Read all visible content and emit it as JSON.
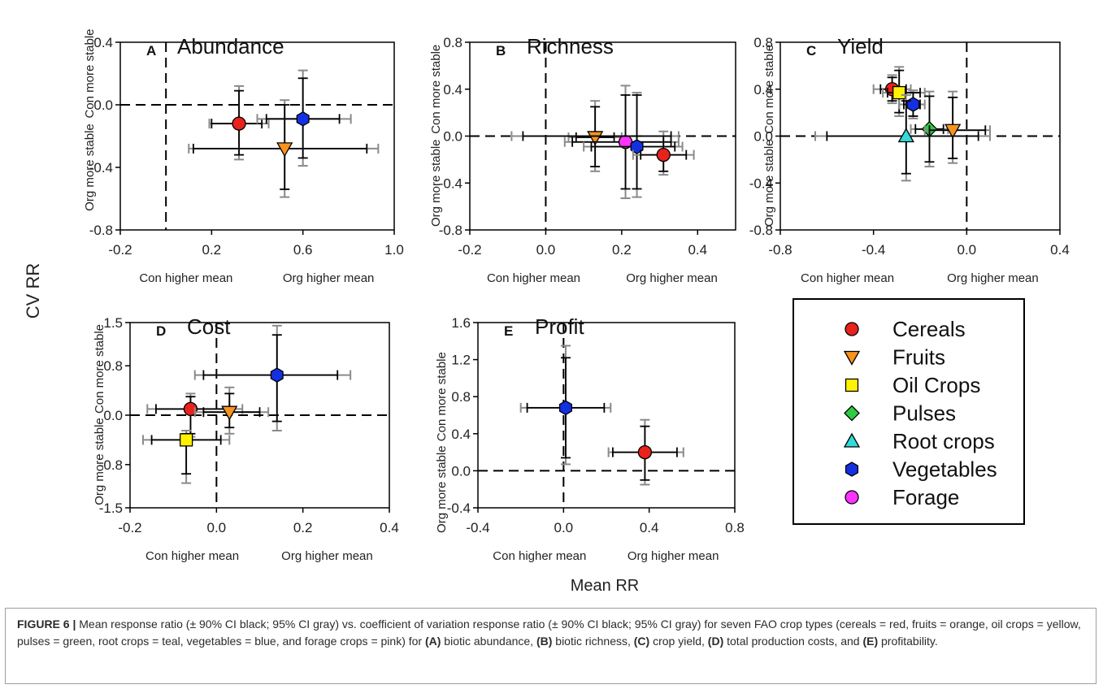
{
  "figure": {
    "y_axis_title": "CV RR",
    "x_axis_title": "Mean RR",
    "x_under_left": "Con higher mean",
    "x_under_right": "Org higher mean",
    "y_side_top": "Con more stable",
    "y_side_bottom": "Org more stable"
  },
  "legend": {
    "items": [
      {
        "label": "Cereals",
        "marker": "circle",
        "color": "#e8221c"
      },
      {
        "label": "Fruits",
        "marker": "triangle-down",
        "color": "#f7931e"
      },
      {
        "label": "Oil Crops",
        "marker": "square",
        "color": "#fff200"
      },
      {
        "label": "Pulses",
        "marker": "diamond",
        "color": "#2ecc40"
      },
      {
        "label": "Root crops",
        "marker": "triangle-up",
        "color": "#33dada"
      },
      {
        "label": "Vegetables",
        "marker": "hexagon",
        "color": "#1430e0"
      },
      {
        "label": "Forage",
        "marker": "circle",
        "color": "#ff33ff"
      }
    ]
  },
  "caption": {
    "label": "FIGURE 6 |",
    "text_1": " Mean response ratio (± 90% CI black; 95% CI gray) vs. coefficient of variation response ratio (± 90% CI black; 95% CI gray) for seven FAO crop types (cereals = red, fruits = orange, oil crops = yellow, pulses = green, root crops = teal, vegetables = blue, and forage crops = pink) for ",
    "a": "(A)",
    "t_a": " biotic abundance, ",
    "b": "(B)",
    "t_b": " biotic richness, ",
    "c": "(C)",
    "t_c": " crop yield, ",
    "d": "(D)",
    "t_d": " total production costs, and ",
    "e": "(E)",
    "t_e": " profitability."
  },
  "chart_data": [
    {
      "type": "scatter",
      "letter": "A",
      "title": "Abundance",
      "xlim": [
        -0.2,
        1.0
      ],
      "ylim": [
        -0.8,
        0.4
      ],
      "xticks": [
        -0.2,
        0.2,
        0.6,
        1.0
      ],
      "xtick_labels": [
        "-0.2",
        "0.2",
        "0.6",
        "1.0"
      ],
      "yticks": [
        -0.8,
        -0.4,
        0.0,
        0.4
      ],
      "ytick_labels": [
        "-0.8",
        "-0.4",
        "0.0",
        "0.4"
      ],
      "ref_x": 0.0,
      "ref_y": 0.0,
      "points": [
        {
          "series": "Cereals",
          "x": 0.32,
          "y": -0.12,
          "x90": [
            0.2,
            0.42
          ],
          "x95": [
            0.19,
            0.45
          ],
          "y90": [
            -0.32,
            0.09
          ],
          "y95": [
            -0.35,
            0.12
          ]
        },
        {
          "series": "Fruits",
          "x": 0.52,
          "y": -0.28,
          "x90": [
            0.12,
            0.88
          ],
          "x95": [
            0.1,
            0.93
          ],
          "y90": [
            -0.54,
            0.0
          ],
          "y95": [
            -0.59,
            0.03
          ]
        },
        {
          "series": "Vegetables",
          "x": 0.6,
          "y": -0.09,
          "x90": [
            0.44,
            0.76
          ],
          "x95": [
            0.4,
            0.81
          ],
          "y90": [
            -0.34,
            0.17
          ],
          "y95": [
            -0.39,
            0.22
          ]
        }
      ]
    },
    {
      "type": "scatter",
      "letter": "B",
      "title": "Richness",
      "xlim": [
        -0.2,
        0.5
      ],
      "ylim": [
        -0.8,
        0.8
      ],
      "xticks": [
        -0.2,
        0.0,
        0.2,
        0.4
      ],
      "xtick_labels": [
        "-0.2",
        "0.0",
        "0.2",
        "0.4"
      ],
      "yticks": [
        -0.8,
        -0.4,
        0.0,
        0.4,
        0.8
      ],
      "ytick_labels": [
        "-0.8",
        "-0.4",
        "0.0",
        "0.4",
        "0.8"
      ],
      "ref_x": 0.0,
      "ref_y": 0.0,
      "points": [
        {
          "series": "Fruits",
          "x": 0.13,
          "y": -0.01,
          "x90": [
            0.08,
            0.18
          ],
          "x95": [
            0.06,
            0.2
          ],
          "y90": [
            -0.26,
            0.25
          ],
          "y95": [
            -0.3,
            0.3
          ]
        },
        {
          "series": "Forage",
          "x": 0.21,
          "y": -0.05,
          "x90": [
            0.07,
            0.33
          ],
          "x95": [
            0.05,
            0.35
          ],
          "y90": [
            -0.45,
            0.35
          ],
          "y95": [
            -0.53,
            0.43
          ]
        },
        {
          "series": "Vegetables",
          "x": 0.24,
          "y": -0.09,
          "x90": [
            0.12,
            0.34
          ],
          "x95": [
            0.1,
            0.36
          ],
          "y90": [
            -0.45,
            0.35
          ],
          "y95": [
            -0.52,
            0.37
          ]
        },
        {
          "series": "Cereals",
          "x": 0.31,
          "y": -0.16,
          "x90": [
            0.25,
            0.37
          ],
          "x95": [
            0.23,
            0.39
          ],
          "y90": [
            -0.3,
            0.0
          ],
          "y95": [
            -0.33,
            0.04
          ]
        },
        {
          "series": "Vegetables",
          "x": 0.24,
          "y": 0.0,
          "x90": [
            -0.06,
            0.33
          ],
          "x95": [
            -0.09,
            0.35
          ],
          "y90": [
            0.0,
            0.0
          ],
          "y95": [
            0.0,
            0.0
          ],
          "hidden": true
        }
      ]
    },
    {
      "type": "scatter",
      "letter": "C",
      "title": "Yield",
      "xlim": [
        -0.8,
        0.4
      ],
      "ylim": [
        -0.8,
        0.8
      ],
      "xticks": [
        -0.8,
        -0.4,
        0.0,
        0.4
      ],
      "xtick_labels": [
        "-0.8",
        "-0.4",
        "0.0",
        "0.4"
      ],
      "yticks": [
        -0.8,
        -0.4,
        0.0,
        0.4,
        0.8
      ],
      "ytick_labels": [
        "-0.8",
        "-0.4",
        "0.0",
        "0.4",
        "0.8"
      ],
      "ref_x": 0.0,
      "ref_y": 0.0,
      "points": [
        {
          "series": "Cereals",
          "x": -0.32,
          "y": 0.4,
          "x90": [
            -0.37,
            -0.26
          ],
          "x95": [
            -0.4,
            -0.24
          ],
          "y90": [
            0.3,
            0.5
          ],
          "y95": [
            0.28,
            0.52
          ]
        },
        {
          "series": "Oil Crops",
          "x": -0.29,
          "y": 0.37,
          "x90": [
            -0.34,
            -0.2
          ],
          "x95": [
            -0.36,
            -0.18
          ],
          "y90": [
            0.2,
            0.56
          ],
          "y95": [
            0.17,
            0.59
          ]
        },
        {
          "series": "Vegetables",
          "x": -0.23,
          "y": 0.27,
          "x90": [
            -0.27,
            -0.2
          ],
          "x95": [
            -0.29,
            -0.18
          ],
          "y90": [
            0.17,
            0.37
          ],
          "y95": [
            0.15,
            0.39
          ]
        },
        {
          "series": "Pulses",
          "x": -0.16,
          "y": 0.06,
          "x90": [
            -0.22,
            -0.1
          ],
          "x95": [
            -0.24,
            -0.08
          ],
          "y90": [
            -0.22,
            0.34
          ],
          "y95": [
            -0.26,
            0.38
          ]
        },
        {
          "series": "Fruits",
          "x": -0.06,
          "y": 0.05,
          "x90": [
            -0.16,
            0.08
          ],
          "x95": [
            -0.18,
            0.1
          ],
          "y90": [
            -0.19,
            0.33
          ],
          "y95": [
            -0.23,
            0.38
          ]
        },
        {
          "series": "Root crops",
          "x": -0.26,
          "y": 0.0,
          "x90": [
            -0.6,
            0.05
          ],
          "x95": [
            -0.65,
            0.1
          ],
          "y90": [
            -0.32,
            0.3
          ],
          "y95": [
            -0.38,
            0.35
          ]
        }
      ]
    },
    {
      "type": "scatter",
      "letter": "D",
      "title": "Cost",
      "xlim": [
        -0.2,
        0.4
      ],
      "ylim": [
        -1.5,
        1.5
      ],
      "xticks": [
        -0.2,
        0.0,
        0.2,
        0.4
      ],
      "xtick_labels": [
        "-0.2",
        "0.0",
        "0.2",
        "0.4"
      ],
      "yticks": [
        -1.5,
        -0.8,
        0.0,
        0.8,
        1.5
      ],
      "ytick_labels": [
        "-1.5",
        "-0.8",
        "0.0",
        "0.8",
        "1.5"
      ],
      "ref_x": 0.0,
      "ref_y": 0.0,
      "points": [
        {
          "series": "Cereals",
          "x": -0.06,
          "y": 0.1,
          "x90": [
            -0.14,
            0.03
          ],
          "x95": [
            -0.16,
            0.06
          ],
          "y90": [
            -0.3,
            0.3
          ],
          "y95": [
            -0.35,
            0.35
          ]
        },
        {
          "series": "Fruits",
          "x": 0.03,
          "y": 0.05,
          "x90": [
            -0.03,
            0.1
          ],
          "x95": [
            -0.05,
            0.12
          ],
          "y90": [
            -0.2,
            0.35
          ],
          "y95": [
            -0.3,
            0.45
          ]
        },
        {
          "series": "Oil Crops",
          "x": -0.07,
          "y": -0.4,
          "x90": [
            -0.15,
            0.01
          ],
          "x95": [
            -0.17,
            0.03
          ],
          "y90": [
            -0.95,
            -0.3
          ],
          "y95": [
            -1.1,
            -0.25
          ]
        },
        {
          "series": "Vegetables",
          "x": 0.14,
          "y": 0.65,
          "x90": [
            -0.03,
            0.28
          ],
          "x95": [
            -0.05,
            0.31
          ],
          "y90": [
            -0.1,
            1.3
          ],
          "y95": [
            -0.25,
            1.45
          ]
        }
      ]
    },
    {
      "type": "scatter",
      "letter": "E",
      "title": "Profit",
      "xlim": [
        -0.4,
        0.8
      ],
      "ylim": [
        -0.4,
        1.6
      ],
      "xticks": [
        -0.4,
        0.0,
        0.4,
        0.8
      ],
      "xtick_labels": [
        "-0.4",
        "0.0",
        "0.4",
        "0.8"
      ],
      "yticks": [
        -0.4,
        0.0,
        0.4,
        0.8,
        1.2,
        1.6
      ],
      "ytick_labels": [
        "-0.4",
        "0.0",
        "0.4",
        "0.8",
        "1.2",
        "1.6"
      ],
      "ref_x": 0.0,
      "ref_y": 0.0,
      "points": [
        {
          "series": "Vegetables",
          "x": 0.01,
          "y": 0.68,
          "x90": [
            -0.17,
            0.19
          ],
          "x95": [
            -0.2,
            0.22
          ],
          "y90": [
            0.14,
            1.22
          ],
          "y95": [
            0.07,
            1.35
          ]
        },
        {
          "series": "Cereals",
          "x": 0.38,
          "y": 0.2,
          "x90": [
            0.23,
            0.53
          ],
          "x95": [
            0.21,
            0.56
          ],
          "y90": [
            -0.1,
            0.48
          ],
          "y95": [
            -0.15,
            0.55
          ]
        }
      ]
    }
  ]
}
